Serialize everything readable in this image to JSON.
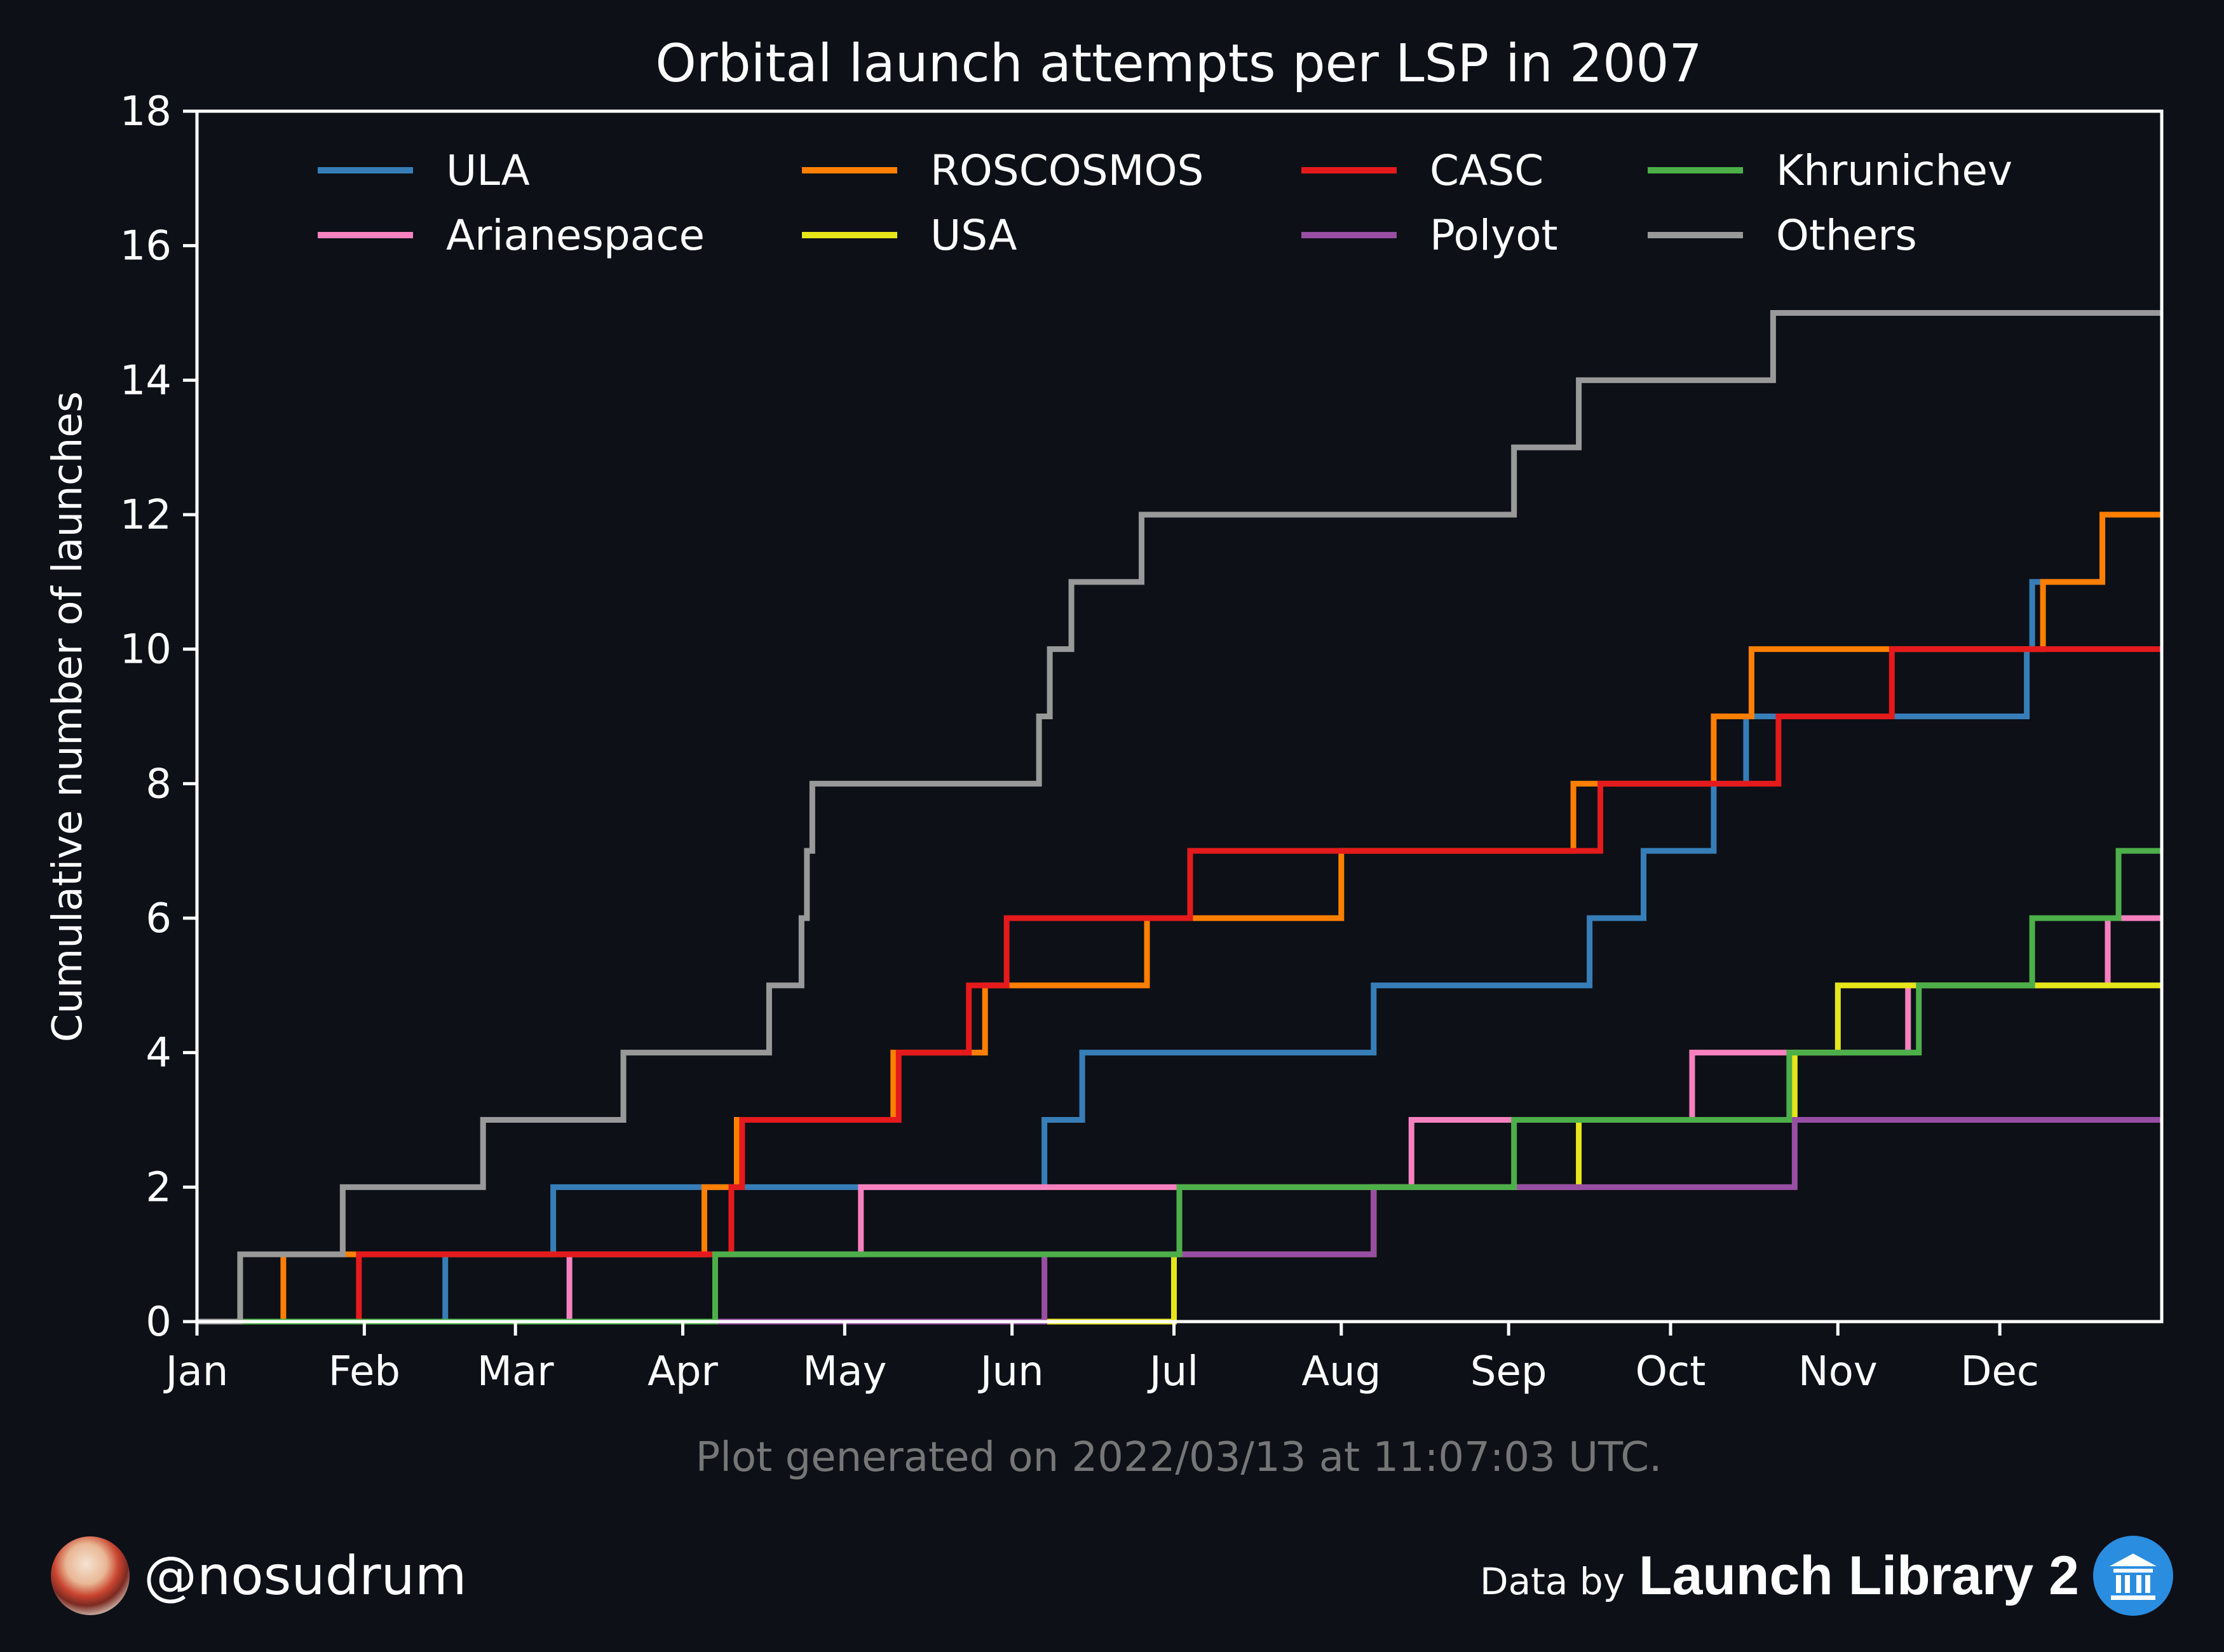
{
  "chart_data": {
    "type": "line",
    "step": true,
    "title": "Orbital launch attempts per LSP in 2007",
    "xlabel": "",
    "ylabel": "Cumulative number of launches",
    "ylim": [
      0,
      18
    ],
    "yticks": [
      0,
      2,
      4,
      6,
      8,
      10,
      12,
      14,
      16,
      18
    ],
    "xlim": [
      "2007-01-01",
      "2007-12-31"
    ],
    "xticks": [
      {
        "date": "2007-01-01",
        "label": "Jan"
      },
      {
        "date": "2007-02-01",
        "label": "Feb"
      },
      {
        "date": "2007-03-01",
        "label": "Mar"
      },
      {
        "date": "2007-04-01",
        "label": "Apr"
      },
      {
        "date": "2007-05-01",
        "label": "May"
      },
      {
        "date": "2007-06-01",
        "label": "Jun"
      },
      {
        "date": "2007-07-01",
        "label": "Jul"
      },
      {
        "date": "2007-08-01",
        "label": "Aug"
      },
      {
        "date": "2007-09-01",
        "label": "Sep"
      },
      {
        "date": "2007-10-01",
        "label": "Oct"
      },
      {
        "date": "2007-11-01",
        "label": "Nov"
      },
      {
        "date": "2007-12-01",
        "label": "Dec"
      }
    ],
    "grid": false,
    "legend_position": "top",
    "series": [
      {
        "name": "ULA",
        "color": "#377eb8",
        "steps": [
          "2007-02-16",
          "2007-03-08",
          "2007-06-07",
          "2007-06-14",
          "2007-08-07",
          "2007-09-16",
          "2007-09-26",
          "2007-10-09",
          "2007-10-15",
          "2007-12-06",
          "2007-12-07",
          "2007-12-20"
        ]
      },
      {
        "name": "Arianespace",
        "color": "#f781bf",
        "steps": [
          "2007-03-11",
          "2007-05-04",
          "2007-08-14",
          "2007-10-05",
          "2007-11-14",
          "2007-12-21"
        ]
      },
      {
        "name": "ROSCOSMOS",
        "color": "#ff7f00",
        "steps": [
          "2007-01-17",
          "2007-04-05",
          "2007-04-11",
          "2007-05-10",
          "2007-05-27",
          "2007-06-26",
          "2007-08-01",
          "2007-09-13",
          "2007-10-09",
          "2007-10-16",
          "2007-12-09",
          "2007-12-20"
        ]
      },
      {
        "name": "USA",
        "color": "#e6e61a",
        "steps": [
          "2007-07-01",
          "2007-08-07",
          "2007-09-14",
          "2007-10-24",
          "2007-11-01"
        ]
      },
      {
        "name": "CASC",
        "color": "#e41a1c",
        "steps": [
          "2007-01-31",
          "2007-04-10",
          "2007-04-12",
          "2007-05-11",
          "2007-05-24",
          "2007-05-31",
          "2007-07-04",
          "2007-09-18",
          "2007-10-21",
          "2007-11-11"
        ]
      },
      {
        "name": "Polyot",
        "color": "#984ea3",
        "steps": [
          "2007-06-07",
          "2007-08-07",
          "2007-10-24"
        ]
      },
      {
        "name": "Khrunichev",
        "color": "#4daf4a",
        "steps": [
          "2007-04-07",
          "2007-07-02",
          "2007-09-02",
          "2007-10-23",
          "2007-11-16",
          "2007-12-07",
          "2007-12-23"
        ]
      },
      {
        "name": "Others",
        "color": "#999999",
        "steps": [
          "2007-01-09",
          "2007-01-28",
          "2007-02-23",
          "2007-03-21",
          "2007-04-17",
          "2007-04-23",
          "2007-04-24",
          "2007-04-25",
          "2007-06-06",
          "2007-06-08",
          "2007-06-12",
          "2007-06-25",
          "2007-09-02",
          "2007-09-14",
          "2007-10-20"
        ]
      }
    ],
    "annotation": "Plot generated on 2022/03/13 at 11:07:03 UTC."
  },
  "footer": {
    "handle": "@nosudrum",
    "data_by": "Data by",
    "source": "Launch Library 2"
  }
}
